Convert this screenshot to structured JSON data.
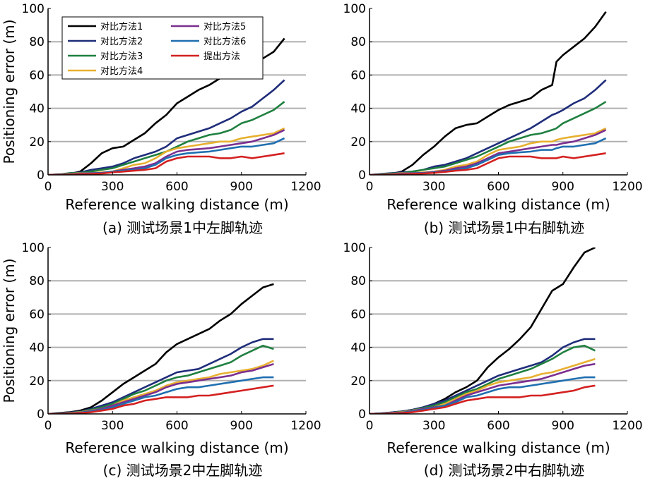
{
  "colors": {
    "对比方法1": "#000000",
    "对比方法2": "#1f2d7a",
    "对比方法3": "#1f8040",
    "对比方法4": "#e8b030",
    "对比方法5": "#7b2f90",
    "对比方法6": "#1f6fb0",
    "提出方法": "#d42020",
    "grid": "#b0b0b0"
  },
  "chart_data": [
    {
      "type": "line",
      "caption": "(a) 测试场景1中左脚轨迹",
      "xlabel": "Reference walking distance (m)",
      "ylabel": "Positioning error (m)",
      "xlim": [
        0,
        1200
      ],
      "ylim": [
        0,
        100
      ],
      "xticks": [
        "0",
        "300",
        "600",
        "900",
        "1200"
      ],
      "yticks": [
        "0",
        "20",
        "40",
        "60",
        "80",
        "100"
      ],
      "grid": "horizontal",
      "legend": {
        "placement": "top-left",
        "entries": [
          "对比方法1",
          "对比方法2",
          "对比方法3",
          "对比方法4",
          "对比方法5",
          "对比方法6",
          "提出方法"
        ]
      },
      "x": [
        0,
        50,
        100,
        150,
        200,
        250,
        300,
        350,
        400,
        450,
        500,
        550,
        600,
        650,
        700,
        750,
        800,
        850,
        900,
        950,
        1000,
        1050,
        1100
      ],
      "series": [
        {
          "name": "对比方法1",
          "values": [
            0,
            0.3,
            0.5,
            2,
            7,
            13,
            16,
            17,
            21,
            25,
            31,
            36,
            43,
            47,
            51,
            54,
            58,
            62,
            65,
            65,
            70,
            74,
            82
          ]
        },
        {
          "name": "对比方法2",
          "values": [
            0,
            0.2,
            1,
            1.5,
            3,
            4,
            5,
            7,
            10,
            12,
            14,
            17,
            22,
            24,
            26,
            28,
            31,
            34,
            38,
            41,
            46,
            51,
            57
          ]
        },
        {
          "name": "对比方法3",
          "values": [
            0,
            0.1,
            1,
            1.2,
            2,
            3,
            4,
            6,
            8,
            10,
            12,
            14,
            17,
            20,
            22,
            24,
            25,
            27,
            31,
            33,
            36,
            39,
            44
          ]
        },
        {
          "name": "对比方法4",
          "values": [
            0,
            0,
            0.5,
            1,
            1,
            1.5,
            2,
            4,
            6,
            7,
            10,
            14,
            16,
            17,
            18,
            19,
            20,
            20,
            22,
            23,
            24,
            25,
            28
          ]
        },
        {
          "name": "对比方法5",
          "values": [
            0,
            0,
            0.3,
            0.8,
            1,
            1.2,
            2,
            3,
            4,
            5,
            7,
            11,
            14,
            15,
            15.5,
            16,
            17,
            18,
            19,
            20,
            22,
            24,
            27
          ]
        },
        {
          "name": "对比方法6",
          "values": [
            0,
            0,
            0.4,
            0.8,
            0.9,
            1,
            2,
            2.5,
            3,
            4,
            6,
            10,
            12,
            13,
            13.5,
            14,
            15,
            16,
            17,
            17,
            18,
            19,
            22
          ]
        },
        {
          "name": "提出方法",
          "values": [
            0,
            0,
            0.2,
            0.5,
            0.6,
            0.8,
            1.5,
            2,
            2.5,
            3,
            4,
            8,
            10,
            11,
            11,
            11,
            10,
            10,
            11,
            10,
            11,
            12,
            13
          ]
        }
      ]
    },
    {
      "type": "line",
      "caption": "(b) 测试场景1中右脚轨迹",
      "xlabel": "Reference walking distance (m)",
      "ylabel": "",
      "xlim": [
        0,
        1200
      ],
      "ylim": [
        0,
        100
      ],
      "xticks": [
        "0",
        "300",
        "600",
        "900",
        "1200"
      ],
      "yticks": [
        "0",
        "20",
        "40",
        "60",
        "80",
        "100"
      ],
      "grid": "horizontal",
      "x": [
        0,
        50,
        100,
        150,
        200,
        250,
        300,
        350,
        400,
        450,
        500,
        550,
        600,
        650,
        700,
        750,
        800,
        850,
        870,
        900,
        950,
        1000,
        1050,
        1100
      ],
      "series": [
        {
          "name": "对比方法1",
          "values": [
            0,
            0.3,
            0.5,
            2,
            6,
            12,
            17,
            23,
            28,
            30,
            31,
            35,
            39,
            42,
            44,
            46,
            51,
            54,
            68,
            72,
            77,
            82,
            89,
            98
          ]
        },
        {
          "name": "对比方法2",
          "values": [
            0,
            0.5,
            1,
            1.5,
            2,
            3,
            5,
            6,
            8,
            10,
            13,
            16,
            19,
            22,
            25,
            28,
            32,
            36,
            37,
            39,
            43,
            46,
            51,
            57
          ]
        },
        {
          "name": "对比方法3",
          "values": [
            0,
            0.3,
            0.8,
            1,
            2,
            3,
            4,
            5,
            7,
            9,
            11,
            14,
            17,
            20,
            22,
            24,
            25,
            27,
            28,
            31,
            34,
            37,
            40,
            44
          ]
        },
        {
          "name": "对比方法4",
          "values": [
            0,
            0,
            0.4,
            1,
            1,
            1.5,
            2,
            3,
            5,
            6,
            8,
            12,
            15,
            16,
            17,
            19,
            20,
            20,
            21,
            22,
            23,
            24,
            25,
            28
          ]
        },
        {
          "name": "对比方法5",
          "values": [
            0,
            0,
            0.3,
            0.8,
            1,
            1.2,
            1.8,
            2.5,
            4,
            5,
            7,
            10,
            13,
            14,
            15,
            16,
            17,
            18,
            18,
            19,
            20,
            22,
            24,
            27
          ]
        },
        {
          "name": "对比方法6",
          "values": [
            0,
            0,
            0.3,
            0.7,
            0.9,
            1,
            1.5,
            2,
            3,
            4,
            6,
            9,
            12,
            13,
            13.5,
            14,
            15,
            15,
            16,
            17,
            17,
            18,
            19,
            22
          ]
        },
        {
          "name": "提出方法",
          "values": [
            0,
            0,
            0.2,
            0.4,
            0.6,
            0.8,
            1.2,
            1.8,
            2.5,
            3,
            4,
            7,
            10,
            11,
            11,
            11,
            10,
            10,
            10,
            11,
            10,
            11,
            12,
            13
          ]
        }
      ]
    },
    {
      "type": "line",
      "caption": "(c) 测试场景2中左脚轨迹",
      "xlabel": "Reference walking distance (m)",
      "ylabel": "Positioning error (m)",
      "xlim": [
        0,
        1200
      ],
      "ylim": [
        0,
        100
      ],
      "xticks": [
        "0",
        "300",
        "600",
        "900",
        "1200"
      ],
      "yticks": [
        "0",
        "20",
        "40",
        "60",
        "80",
        "100"
      ],
      "grid": "horizontal",
      "x": [
        0,
        50,
        100,
        150,
        200,
        250,
        300,
        350,
        400,
        450,
        500,
        550,
        600,
        650,
        700,
        750,
        800,
        850,
        900,
        950,
        1000,
        1050
      ],
      "series": [
        {
          "name": "对比方法1",
          "values": [
            0,
            0.5,
            1,
            2,
            4,
            8,
            13,
            18,
            22,
            26,
            30,
            37,
            42,
            45,
            48,
            51,
            56,
            60,
            66,
            71,
            76,
            78
          ]
        },
        {
          "name": "对比方法2",
          "values": [
            0,
            0.3,
            0.8,
            1.5,
            3,
            5,
            7,
            10,
            13,
            16,
            19,
            22,
            25,
            26,
            27,
            30,
            33,
            36,
            40,
            43,
            45,
            45
          ]
        },
        {
          "name": "对比方法3",
          "values": [
            0,
            0.2,
            0.6,
            1.2,
            2.5,
            4,
            6,
            9,
            12,
            14,
            17,
            20,
            22,
            23,
            25,
            27,
            29,
            31,
            35,
            38,
            41,
            39
          ]
        },
        {
          "name": "对比方法4",
          "values": [
            0,
            0.1,
            0.4,
            1,
            2,
            3,
            5,
            8,
            10,
            12,
            14,
            17,
            19,
            20,
            21,
            22,
            24,
            25,
            26,
            27,
            29,
            32
          ]
        },
        {
          "name": "对比方法5",
          "values": [
            0,
            0.1,
            0.3,
            0.8,
            1.8,
            3,
            5,
            7,
            9,
            11,
            13,
            16,
            18,
            19,
            20,
            21,
            22,
            23,
            25,
            26,
            28,
            30
          ]
        },
        {
          "name": "对比方法6",
          "values": [
            0,
            0.1,
            0.3,
            0.7,
            1.5,
            2.5,
            4,
            6,
            8,
            10,
            11,
            13,
            15,
            16,
            16,
            17,
            18,
            19,
            20,
            21,
            22,
            22
          ]
        },
        {
          "name": "提出方法",
          "values": [
            0,
            0,
            0.2,
            0.5,
            1,
            2,
            3,
            5,
            6,
            8,
            9,
            10,
            10,
            10,
            11,
            11,
            12,
            13,
            14,
            15,
            16,
            17
          ]
        }
      ]
    },
    {
      "type": "line",
      "caption": "(d) 测试场景2中右脚轨迹",
      "xlabel": "Reference walking distance (m)",
      "ylabel": "",
      "xlim": [
        0,
        1200
      ],
      "ylim": [
        0,
        100
      ],
      "xticks": [
        "0",
        "300",
        "600",
        "900",
        "1200"
      ],
      "yticks": [
        "0",
        "20",
        "40",
        "60",
        "80",
        "100"
      ],
      "grid": "horizontal",
      "x": [
        0,
        50,
        100,
        150,
        200,
        250,
        300,
        350,
        400,
        450,
        500,
        550,
        600,
        650,
        700,
        750,
        800,
        850,
        900,
        950,
        1000,
        1050
      ],
      "series": [
        {
          "name": "对比方法1",
          "values": [
            0,
            0.3,
            0.8,
            1.5,
            2.5,
            4,
            6,
            9,
            13,
            16,
            20,
            28,
            34,
            39,
            45,
            52,
            63,
            74,
            78,
            88,
            97,
            100
          ]
        },
        {
          "name": "对比方法2",
          "values": [
            0,
            0.3,
            0.8,
            1.5,
            2.5,
            4,
            6,
            8,
            11,
            14,
            17,
            20,
            23,
            25,
            27,
            29,
            31,
            35,
            40,
            43,
            45,
            45
          ]
        },
        {
          "name": "对比方法3",
          "values": [
            0,
            0.2,
            0.6,
            1.2,
            2.2,
            3.5,
            5,
            7,
            10,
            13,
            15,
            18,
            21,
            23,
            25,
            27,
            30,
            33,
            37,
            40,
            41,
            38
          ]
        },
        {
          "name": "对比方法4",
          "values": [
            0,
            0.1,
            0.5,
            1,
            2,
            3,
            4,
            6,
            9,
            12,
            14,
            17,
            19,
            20,
            21,
            22,
            24,
            25,
            27,
            29,
            31,
            33
          ]
        },
        {
          "name": "对比方法5",
          "values": [
            0,
            0.1,
            0.4,
            0.8,
            1.8,
            3,
            4,
            5,
            8,
            11,
            13,
            15,
            17,
            18,
            19,
            20,
            21,
            23,
            25,
            27,
            29,
            30
          ]
        },
        {
          "name": "对比方法6",
          "values": [
            0,
            0.1,
            0.3,
            0.7,
            1.5,
            2.5,
            3.5,
            5,
            7,
            10,
            11,
            13,
            15,
            16,
            16,
            17,
            18,
            19,
            20,
            21,
            22,
            22
          ]
        },
        {
          "name": "提出方法",
          "values": [
            0,
            0,
            0.2,
            0.5,
            1,
            2,
            3,
            4,
            6,
            8,
            9,
            10,
            10,
            10,
            10,
            11,
            11,
            12,
            13,
            14,
            16,
            17
          ]
        }
      ]
    }
  ]
}
